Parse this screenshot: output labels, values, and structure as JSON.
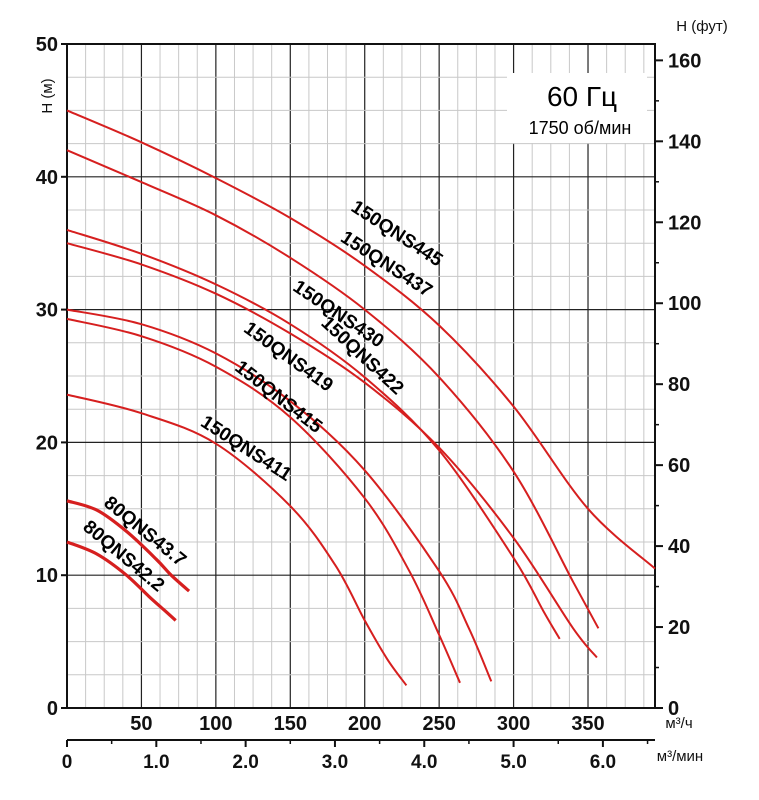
{
  "chart_data": {
    "type": "line",
    "title": "60 Гц",
    "subtitle": "1750 об/мин",
    "ylabel": "H (м)",
    "ylabel_right": "H (фут)",
    "xlabel": "м³/ч",
    "xlabel_secondary": "м³/мин",
    "xlim": [
      0,
      395
    ],
    "ylim": [
      0,
      50
    ],
    "x_ticks": [
      "50",
      "100",
      "150",
      "200",
      "250",
      "300",
      "350"
    ],
    "x_tick_values": [
      50,
      100,
      150,
      200,
      250,
      300,
      350
    ],
    "x_secondary_ticks": [
      "0",
      "1.0",
      "2.0",
      "3.0",
      "4.0",
      "5.0",
      "6.0"
    ],
    "x_secondary_values": [
      0,
      1,
      2,
      3,
      4,
      5,
      6
    ],
    "y_ticks": [
      "0",
      "10",
      "20",
      "30",
      "40",
      "50"
    ],
    "y_tick_values": [
      0,
      10,
      20,
      30,
      40,
      50
    ],
    "y_right_ticks": [
      "0",
      "20",
      "40",
      "60",
      "80",
      "100",
      "120",
      "140",
      "160"
    ],
    "y_right_values": [
      0,
      20,
      40,
      60,
      80,
      100,
      120,
      140,
      160
    ],
    "grid": true,
    "series": [
      {
        "name": "150QNS445",
        "label_anchor": [
          190,
          37.5
        ],
        "label_angle": 33,
        "x": [
          0,
          50,
          100,
          150,
          200,
          250,
          300,
          350,
          395
        ],
        "y": [
          45,
          42.6,
          39.9,
          36.9,
          33.3,
          28.8,
          22.7,
          15.0,
          10.5
        ]
      },
      {
        "name": "150QNS437",
        "label_anchor": [
          183,
          35.2
        ],
        "label_angle": 33,
        "x": [
          0,
          50,
          100,
          150,
          200,
          250,
          300,
          340,
          357
        ],
        "y": [
          42,
          39.6,
          37.1,
          33.9,
          30.0,
          24.9,
          17.8,
          9.5,
          6.0
        ]
      },
      {
        "name": "150QNS430",
        "label_anchor": [
          151,
          31.5
        ],
        "label_angle": 34,
        "x": [
          0,
          50,
          100,
          150,
          200,
          250,
          300,
          320,
          331
        ],
        "y": [
          36,
          34.2,
          31.9,
          28.9,
          24.9,
          19.4,
          11.3,
          7.3,
          5.2
        ]
      },
      {
        "name": "150QNS422",
        "label_anchor": [
          170,
          28.9
        ],
        "label_angle": 43,
        "x": [
          0,
          50,
          100,
          150,
          200,
          250,
          300,
          340,
          356
        ],
        "y": [
          35,
          33.4,
          31.2,
          28.2,
          24.5,
          19.6,
          12.8,
          6.0,
          3.8
        ]
      },
      {
        "name": "150QNS419",
        "label_anchor": [
          118,
          28.4
        ],
        "label_angle": 36,
        "x": [
          0,
          50,
          100,
          150,
          200,
          250,
          270,
          285
        ],
        "y": [
          30,
          28.9,
          26.7,
          23.1,
          17.9,
          10.3,
          6.0,
          2.0
        ]
      },
      {
        "name": "150QNS415",
        "label_anchor": [
          112,
          25.5
        ],
        "label_angle": 38,
        "x": [
          0,
          50,
          100,
          150,
          200,
          230,
          250,
          264
        ],
        "y": [
          29.3,
          28.0,
          25.7,
          21.9,
          15.8,
          10.3,
          5.5,
          1.9
        ]
      },
      {
        "name": "150QNS411",
        "label_anchor": [
          89,
          21.3
        ],
        "label_angle": 33,
        "x": [
          0,
          50,
          100,
          150,
          180,
          200,
          215,
          228
        ],
        "y": [
          23.6,
          22.2,
          19.9,
          15.2,
          10.8,
          6.6,
          3.7,
          1.7
        ]
      },
      {
        "name": "80QNS43.7",
        "label_anchor": [
          24,
          15.3
        ],
        "label_angle": 39,
        "x": [
          0,
          20,
          40,
          60,
          70,
          82
        ],
        "y": [
          15.6,
          14.9,
          13.3,
          11.2,
          10.0,
          8.8
        ]
      },
      {
        "name": "80QNS42.2",
        "label_anchor": [
          10,
          13.5
        ],
        "label_angle": 40,
        "x": [
          0,
          20,
          40,
          55,
          65,
          73
        ],
        "y": [
          12.5,
          11.6,
          10.0,
          8.4,
          7.4,
          6.6
        ]
      }
    ]
  }
}
